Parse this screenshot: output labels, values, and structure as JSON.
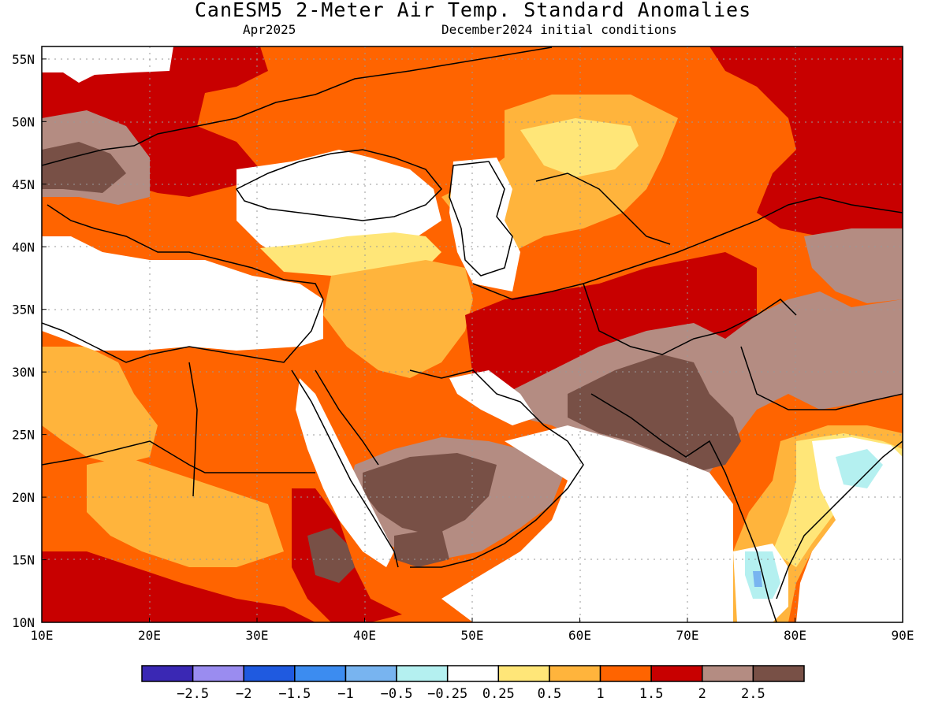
{
  "title": "CanESM5 2-Meter Air Temp. Standard Anomalies",
  "forecast_month": "Apr2025",
  "initial_conditions": "December2024 initial conditions",
  "map": {
    "lon_labels": [
      "10E",
      "20E",
      "30E",
      "40E",
      "50E",
      "60E",
      "70E",
      "80E",
      "90E"
    ],
    "lat_labels": [
      "55N",
      "50N",
      "45N",
      "40N",
      "35N",
      "30N",
      "25N",
      "20N",
      "15N",
      "10N"
    ],
    "lon_range": [
      10,
      90
    ],
    "lat_range": [
      10,
      56
    ],
    "grid": "dotted"
  },
  "colorbar": {
    "labels": [
      "-2.5",
      "-2",
      "-1.5",
      "-1",
      "-0.5",
      "-0.25",
      "0.25",
      "0.5",
      "1",
      "1.5",
      "2",
      "2.5"
    ],
    "colors": [
      "#3a28b4",
      "#9a8cf0",
      "#1f5ae0",
      "#3c8cf0",
      "#78b4f0",
      "#b4f0f0",
      "#ffffff",
      "#ffe678",
      "#ffb43c",
      "#ff6400",
      "#c80000",
      "#b48c82",
      "#785046"
    ]
  },
  "palette": {
    "white": "#ffffff",
    "yellow": "#ffe678",
    "lightorange": "#ffb43c",
    "orange": "#ff6400",
    "red": "#c80000",
    "tan": "#b48c82",
    "brown": "#785046",
    "lightblue": "#b4f0f0",
    "midblue": "#78b4f0"
  }
}
